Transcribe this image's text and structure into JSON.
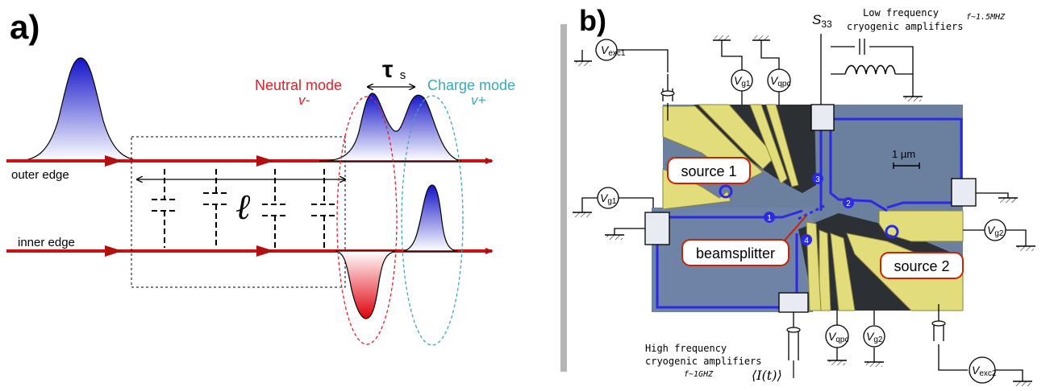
{
  "panel_a": {
    "label": "a)",
    "tau_symbol": "τ",
    "tau_sub": "s",
    "neutral_mode": "Neutral mode",
    "neutral_velocity": "v-",
    "charge_mode": "Charge mode",
    "charge_velocity": "v+",
    "outer_edge": "outer edge",
    "inner_edge": "inner edge",
    "length_symbol": "ℓ",
    "colors": {
      "edge": "#cc1111",
      "packet_blue": "#1a1acc",
      "packet_red": "#e0101a",
      "neutral_ellipse": "#e0202a",
      "charge_ellipse": "#3aa9b8"
    }
  },
  "panel_b": {
    "label": "b)",
    "s33": "S",
    "s33_sub": "33",
    "low_freq_line1": "Low frequency",
    "low_freq_line2": "cryogenic amplifiers",
    "low_freq_f": "f~1.5MHZ",
    "high_freq_line1": "High frequency",
    "high_freq_line2": "cryogenic amplifiers",
    "high_freq_f": "f~1GHZ",
    "current_label": "⟨I(t)⟩",
    "scale_bar": "1 µm",
    "source1": "source 1",
    "source2": "source 2",
    "beamsplitter": "beamsplitter",
    "path_numbers": [
      "1",
      "2",
      "3",
      "4"
    ],
    "v_exc1": {
      "main": "V",
      "sub": "exc1"
    },
    "v_exc2": {
      "main": "V",
      "sub": "exc2"
    },
    "v_g1_top": {
      "main": "V",
      "sub": "g1"
    },
    "v_g1_left": {
      "main": "V",
      "sub": "g1"
    },
    "v_qpc_top": {
      "main": "V",
      "sub": "qpc"
    },
    "v_qpc_bottom": {
      "main": "V",
      "sub": "qpc"
    },
    "v_g2_right": {
      "main": "V",
      "sub": "g2"
    },
    "v_g2_bottom": {
      "main": "V",
      "sub": "g2"
    },
    "colors": {
      "channel": "#2a2ae6",
      "gate": "#e3dc7a",
      "mesa": "#6f86a8",
      "callout": "#cc2200"
    }
  }
}
